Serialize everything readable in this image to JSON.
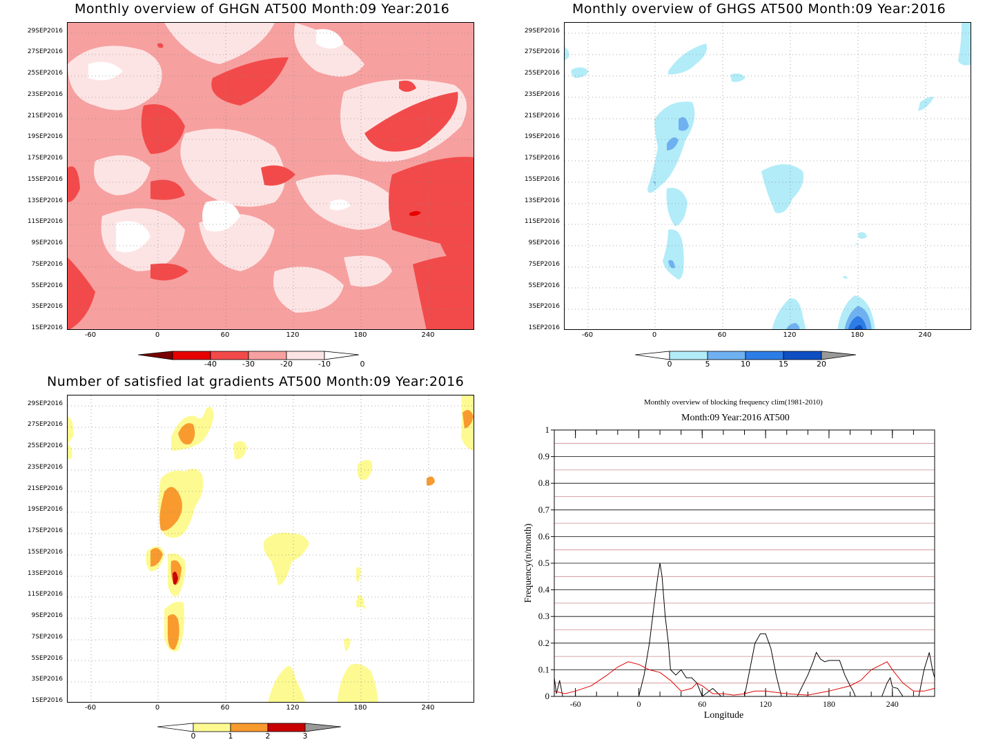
{
  "date_ticks": [
    "1SEP2016",
    "3SEP2016",
    "5SEP2016",
    "7SEP2016",
    "9SEP2016",
    "11SEP2016",
    "13SEP2016",
    "15SEP2016",
    "17SEP2016",
    "19SEP2016",
    "21SEP2016",
    "23SEP2016",
    "25SEP2016",
    "27SEP2016",
    "29SEP2016"
  ],
  "lon_ticks": [
    "-60",
    "0",
    "60",
    "120",
    "180",
    "240"
  ],
  "panels": {
    "ghgn": {
      "title": "Monthly overview of GHGN AT500 Month:09 Year:2016",
      "colorbar": {
        "labels": [
          "-40",
          "-30",
          "-20",
          "-10",
          "0"
        ],
        "colors": [
          "#7a0000",
          "#e60000",
          "#f24a4a",
          "#f7a0a0",
          "#fde4e4",
          "#ffffff"
        ]
      }
    },
    "ghgs": {
      "title": "Monthly overview of GHGS AT500 Month:09 Year:2016",
      "colorbar": {
        "labels": [
          "0",
          "5",
          "10",
          "15",
          "20"
        ],
        "colors": [
          "#ffffff",
          "#b2ecf8",
          "#6fb1f0",
          "#2d7de6",
          "#0e4fc4",
          "#999999"
        ]
      }
    },
    "lat_grad": {
      "title": "Number of satisfied lat gradients AT500 Month:09 Year:2016",
      "colorbar": {
        "labels": [
          "0",
          "1",
          "2",
          "3"
        ],
        "colors": [
          "#ffffff",
          "#fdfa92",
          "#f99a2e",
          "#c80000",
          "#999999"
        ]
      }
    },
    "freq": {
      "title_line1": "Monthly overview of blocking frequency clim(1981-2010)",
      "title_line2": "Month:09 Year:2016  AT500",
      "xlabel": "Longitude",
      "ylabel": "Frequency(n/month)",
      "yticks": [
        "0",
        "0.1",
        "0.2",
        "0.3",
        "0.4",
        "0.5",
        "0.6",
        "0.7",
        "0.8",
        "0.9",
        "1"
      ],
      "xticks": [
        "-60",
        "0",
        "60",
        "120",
        "180",
        "240"
      ]
    }
  },
  "chart_data": {
    "type": "line",
    "title": "Monthly overview of blocking frequency clim(1981-2010)",
    "subtitle": "Month:09 Year:2016  AT500",
    "xlabel": "Longitude",
    "ylabel": "Frequency(n/month)",
    "xlim": [
      -80,
      280
    ],
    "ylim": [
      0,
      1
    ],
    "grid": true,
    "series": [
      {
        "color": "#000000",
        "x": [
          -80,
          -78,
          -75,
          -72,
          -68,
          -60,
          -40,
          -20,
          0,
          5,
          10,
          15,
          18,
          20,
          22,
          25,
          28,
          30,
          35,
          40,
          45,
          50,
          55,
          60,
          70,
          78,
          80,
          100,
          105,
          110,
          115,
          120,
          125,
          130,
          135,
          150,
          160,
          165,
          168,
          172,
          176,
          180,
          185,
          190,
          195,
          200,
          203,
          205,
          210,
          220,
          230,
          235,
          238,
          240,
          245,
          250,
          260,
          265,
          270,
          275,
          278,
          280
        ],
        "y": [
          0.07,
          0.01,
          0.06,
          0.0,
          0.0,
          0.0,
          0.0,
          0.0,
          0.0,
          0.08,
          0.2,
          0.36,
          0.45,
          0.5,
          0.45,
          0.3,
          0.2,
          0.1,
          0.08,
          0.1,
          0.07,
          0.07,
          0.05,
          0.0,
          0.03,
          0.0,
          0.0,
          0.0,
          0.1,
          0.2,
          0.235,
          0.235,
          0.18,
          0.08,
          0.0,
          0.0,
          0.08,
          0.13,
          0.165,
          0.14,
          0.13,
          0.135,
          0.135,
          0.135,
          0.08,
          0.04,
          0.02,
          0.0,
          0.0,
          0.0,
          0.0,
          0.05,
          0.07,
          0.035,
          0.03,
          0.0,
          0.0,
          0.0,
          0.1,
          0.165,
          0.1,
          0.07
        ]
      },
      {
        "color": "#e00000",
        "x": [
          -80,
          -70,
          -60,
          -45,
          -30,
          -20,
          -10,
          0,
          10,
          20,
          30,
          40,
          50,
          55,
          60,
          70,
          80,
          90,
          100,
          110,
          120,
          140,
          160,
          180,
          200,
          210,
          220,
          230,
          235,
          240,
          250,
          260,
          270,
          280
        ],
        "y": [
          0.02,
          0.01,
          0.02,
          0.04,
          0.08,
          0.11,
          0.13,
          0.12,
          0.1,
          0.09,
          0.06,
          0.02,
          0.03,
          0.05,
          0.04,
          0.01,
          0.01,
          0.005,
          0.01,
          0.02,
          0.02,
          0.01,
          0.005,
          0.02,
          0.04,
          0.06,
          0.1,
          0.12,
          0.13,
          0.1,
          0.05,
          0.02,
          0.02,
          0.03
        ]
      }
    ]
  }
}
